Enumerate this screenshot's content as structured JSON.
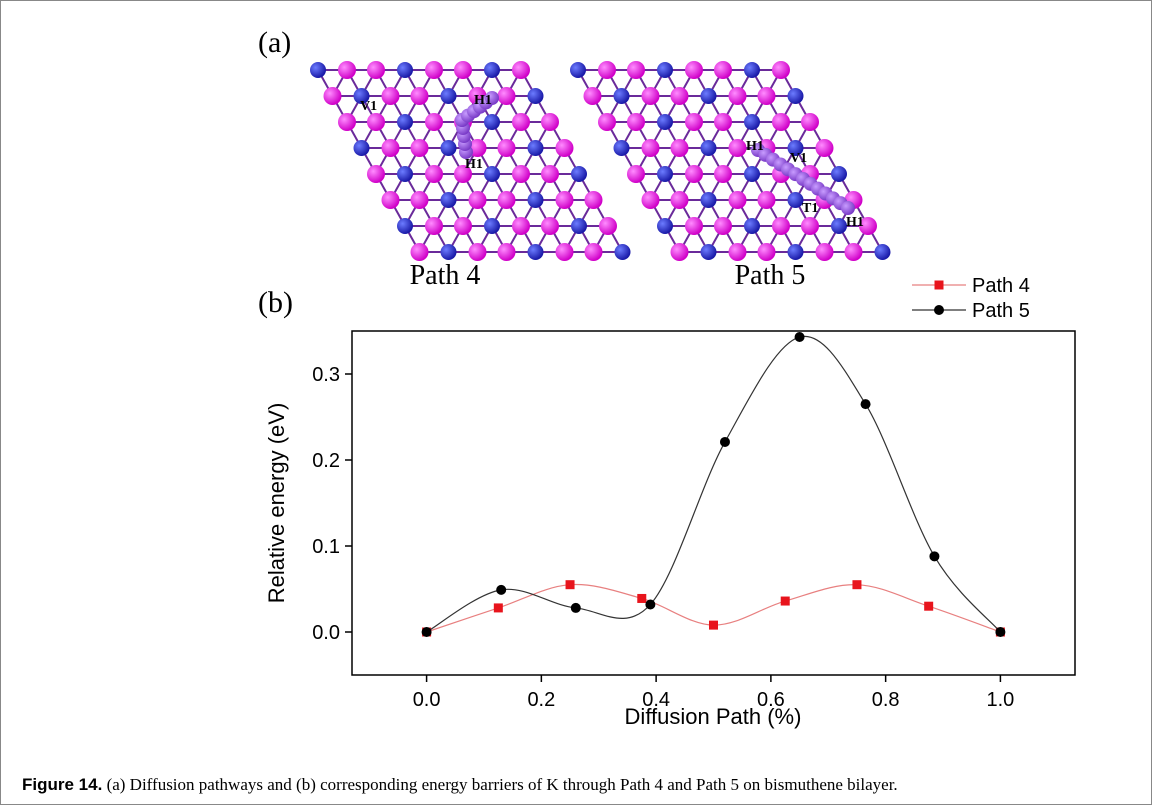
{
  "figure": {
    "panel_a": {
      "label": "(a)",
      "captions": [
        "Path 4",
        "Path 5"
      ],
      "sites_left": [
        "V1",
        "H1",
        "H1"
      ],
      "sites_right": [
        "H1",
        "V1",
        "T1",
        "H1"
      ]
    },
    "panel_b": {
      "label": "(b)"
    }
  },
  "chart_data": {
    "type": "line",
    "x_label": "Diffusion Path (%)",
    "y_label": "Relative energy (eV)",
    "xlim": [
      -0.13,
      1.13
    ],
    "ylim": [
      -0.05,
      0.35
    ],
    "xticks": [
      {
        "value": 0,
        "label": "0.0"
      },
      {
        "value": 0.2,
        "label": "0.2"
      },
      {
        "value": 0.4,
        "label": "0.4"
      },
      {
        "value": 0.6,
        "label": "0.6"
      },
      {
        "value": 0.8,
        "label": "0.8"
      },
      {
        "value": 1,
        "label": "1.0"
      }
    ],
    "yticks": [
      {
        "value": 0,
        "label": "0.0"
      },
      {
        "value": 0.1,
        "label": "0.1"
      },
      {
        "value": 0.2,
        "label": "0.2"
      },
      {
        "value": 0.3,
        "label": "0.3"
      }
    ],
    "legend": "upper right",
    "series": [
      {
        "name": "Path 4",
        "color": "#e8141c",
        "line_color": "#e88080",
        "marker": "square",
        "x": [
          0,
          0.125,
          0.25,
          0.375,
          0.5,
          0.625,
          0.75,
          0.875,
          1.0
        ],
        "values": [
          0,
          0.028,
          0.055,
          0.039,
          0.008,
          0.036,
          0.055,
          0.03,
          0
        ]
      },
      {
        "name": "Path 5",
        "color": "#000000",
        "line_color": "#333333",
        "marker": "circle",
        "x": [
          0,
          0.13,
          0.26,
          0.39,
          0.52,
          0.65,
          0.765,
          0.885,
          1.0
        ],
        "values": [
          0,
          0.049,
          0.028,
          0.032,
          0.221,
          0.343,
          0.265,
          0.088,
          0
        ]
      }
    ]
  },
  "caption": {
    "label": "Figure 14.",
    "text": " (a) Diffusion pathways and (b) corresponding energy barriers of K through Path 4 and Path 5 on bismuthene bilayer."
  }
}
